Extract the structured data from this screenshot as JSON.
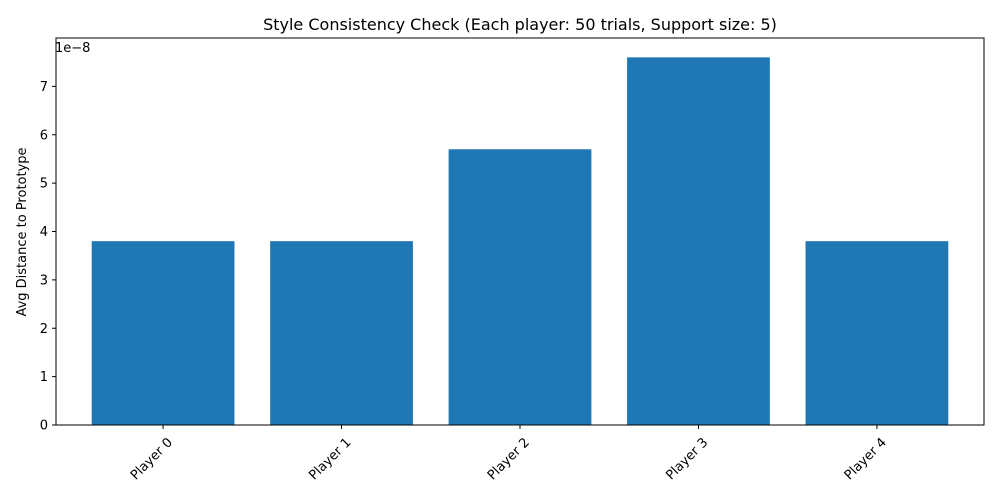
{
  "chart_data": {
    "type": "bar",
    "title": "Style Consistency Check (Each player: 50 trials, Support size: 5)",
    "xlabel": "",
    "ylabel": "Avg Distance to Prototype",
    "categories": [
      "Player 0",
      "Player 1",
      "Player 2",
      "Player 3",
      "Player 4"
    ],
    "values": [
      3.8e-08,
      3.8e-08,
      5.7e-08,
      7.6e-08,
      3.8e-08
    ],
    "ylim": [
      0,
      8e-08
    ],
    "yticks": [
      0,
      1,
      2,
      3,
      4,
      5,
      6,
      7
    ],
    "yticks_scale": 1e-08,
    "y_offset_label": "1e−8",
    "bar_color": "#1f77b4",
    "grid": false,
    "xtick_rotation": 45
  }
}
